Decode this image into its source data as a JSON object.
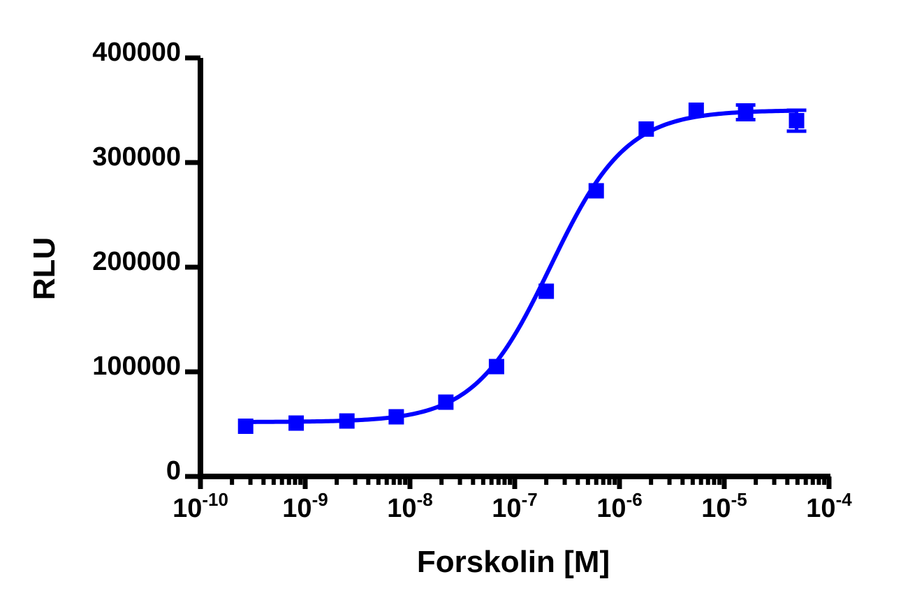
{
  "chart_data": {
    "type": "scatter",
    "xlabel": "Forskolin [M]",
    "ylabel": "RLU",
    "x_scale": "log",
    "xlim": [
      1e-10,
      0.0001
    ],
    "ylim": [
      0,
      400000
    ],
    "x_ticks": [
      {
        "base": "10",
        "exp": "-10",
        "value": 1e-10
      },
      {
        "base": "10",
        "exp": "-9",
        "value": 1e-09
      },
      {
        "base": "10",
        "exp": "-8",
        "value": 1e-08
      },
      {
        "base": "10",
        "exp": "-7",
        "value": 1e-07
      },
      {
        "base": "10",
        "exp": "-6",
        "value": 1e-06
      },
      {
        "base": "10",
        "exp": "-5",
        "value": 1e-05
      },
      {
        "base": "10",
        "exp": "-4",
        "value": 0.0001
      }
    ],
    "y_ticks": [
      {
        "label": "0",
        "value": 0
      },
      {
        "label": "100000",
        "value": 100000
      },
      {
        "label": "200000",
        "value": 200000
      },
      {
        "label": "300000",
        "value": 300000
      },
      {
        "label": "400000",
        "value": 400000
      }
    ],
    "grid": false,
    "color": "#0000ff",
    "series": [
      {
        "x": [
          2.7e-10,
          8.2e-10,
          2.5e-09,
          7.4e-09,
          2.2e-08,
          6.7e-08,
          2e-07,
          6e-07,
          1.8e-06,
          5.4e-06,
          1.6e-05,
          4.9e-05
        ],
        "y": [
          48000,
          51000,
          53000,
          57000,
          71000,
          105000,
          177000,
          273000,
          332000,
          350000,
          348000,
          340000
        ],
        "error": [
          0,
          0,
          0,
          0,
          0,
          0,
          0,
          0,
          0,
          0,
          7000,
          10000
        ]
      }
    ],
    "fit": {
      "model": "sigmoidal dose-response",
      "bottom": 52000,
      "top": 350000,
      "ec50": 2.2e-07,
      "hill": 1.2
    }
  }
}
